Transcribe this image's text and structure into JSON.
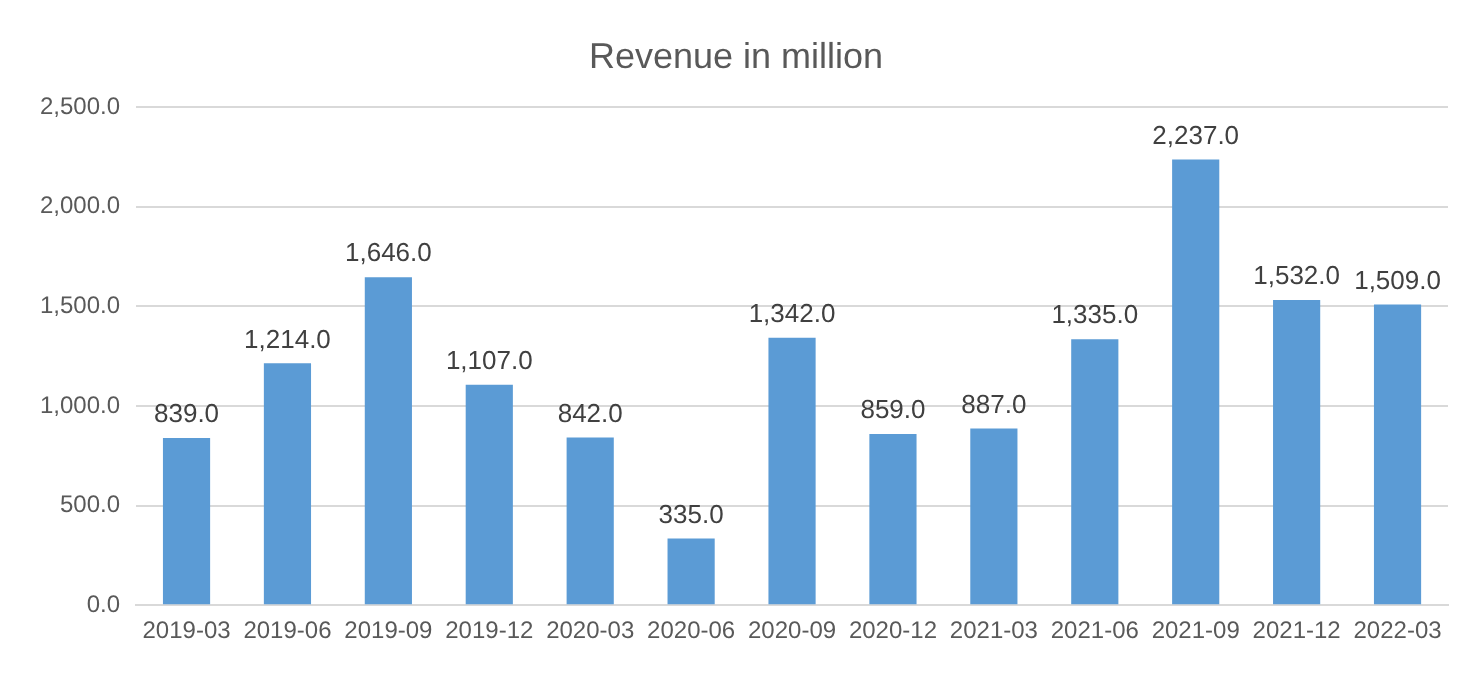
{
  "chart_data": {
    "type": "bar",
    "title": "Revenue in million",
    "categories": [
      "2019-03",
      "2019-06",
      "2019-09",
      "2019-12",
      "2020-03",
      "2020-06",
      "2020-09",
      "2020-12",
      "2021-03",
      "2021-06",
      "2021-09",
      "2021-12",
      "2022-03"
    ],
    "values": [
      839,
      1214,
      1646,
      1107,
      842,
      335,
      1342,
      859,
      887,
      1335,
      2237,
      1532,
      1509
    ],
    "value_labels": [
      "839.0",
      "1,214.0",
      "1,646.0",
      "1,107.0",
      "842.0",
      "335.0",
      "1,342.0",
      "859.0",
      "887.0",
      "1,335.0",
      "2,237.0",
      "1,532.0",
      "1,509.0"
    ],
    "color": "#5b9bd5",
    "ylim": [
      0,
      2500
    ],
    "yticks": [
      {
        "value": 0,
        "label": "0.0"
      },
      {
        "value": 500,
        "label": "500.0"
      },
      {
        "value": 1000,
        "label": "1,000.0"
      },
      {
        "value": 1500,
        "label": "1,500.0"
      },
      {
        "value": 2000,
        "label": "2,000.0"
      },
      {
        "value": 2500,
        "label": "2,500.0"
      }
    ],
    "grid": "y",
    "legend": false
  }
}
